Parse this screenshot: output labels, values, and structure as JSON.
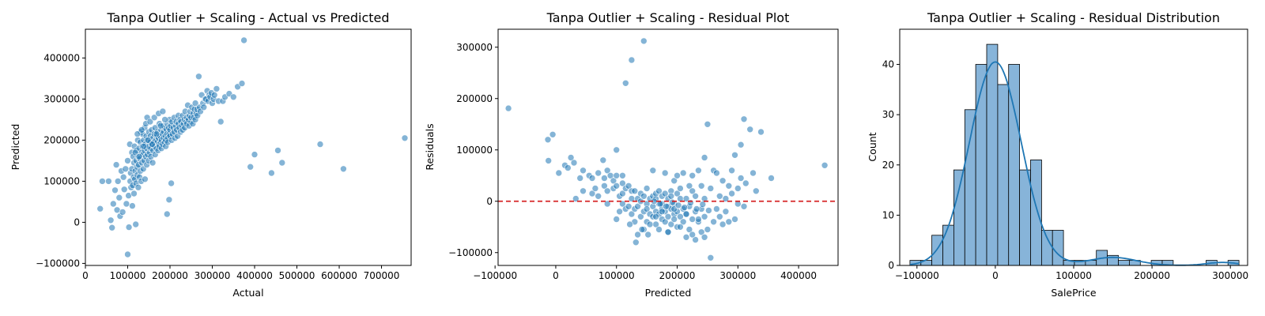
{
  "chart_data": [
    {
      "type": "scatter",
      "title": "Tanpa Outlier + Scaling - Actual vs Predicted",
      "xlabel": "Actual",
      "ylabel": "Predicted",
      "xlim": [
        0,
        770000
      ],
      "ylim": [
        -105000,
        470000
      ],
      "xticks": [
        0,
        100000,
        200000,
        300000,
        400000,
        500000,
        600000,
        700000
      ],
      "yticks": [
        -100000,
        0,
        100000,
        200000,
        300000,
        400000
      ],
      "color": "#1f77b4",
      "grid": false,
      "points_x": [
        35000,
        40000,
        55000,
        60000,
        63000,
        66000,
        70000,
        73000,
        75000,
        77000,
        80000,
        82000,
        85000,
        88000,
        90000,
        92000,
        95000,
        97000,
        100000,
        100000,
        102000,
        103000,
        105000,
        106000,
        107000,
        108000,
        110000,
        110000,
        111000,
        112000,
        113000,
        114000,
        115000,
        115000,
        116000,
        117000,
        118000,
        119000,
        120000,
        120000,
        121000,
        122000,
        123000,
        124000,
        125000,
        125000,
        126000,
        127000,
        128000,
        129000,
        130000,
        130000,
        131000,
        132000,
        133000,
        134000,
        135000,
        135000,
        136000,
        137000,
        138000,
        139000,
        140000,
        140000,
        141000,
        142000,
        143000,
        144000,
        145000,
        145000,
        146000,
        147000,
        148000,
        149000,
        150000,
        150000,
        152000,
        153000,
        154000,
        155000,
        155000,
        157000,
        158000,
        159000,
        160000,
        160000,
        162000,
        163000,
        164000,
        165000,
        165000,
        167000,
        168000,
        169000,
        170000,
        170000,
        172000,
        173000,
        174000,
        175000,
        175000,
        177000,
        178000,
        179000,
        180000,
        180000,
        182000,
        183000,
        184000,
        185000,
        185000,
        187000,
        188000,
        189000,
        190000,
        190000,
        192000,
        193000,
        194000,
        195000,
        195000,
        197000,
        198000,
        199000,
        200000,
        200000,
        202000,
        204000,
        205000,
        206000,
        208000,
        210000,
        210000,
        212000,
        214000,
        215000,
        216000,
        218000,
        220000,
        220000,
        222000,
        224000,
        225000,
        226000,
        228000,
        230000,
        230000,
        232000,
        234000,
        235000,
        236000,
        238000,
        240000,
        240000,
        242000,
        244000,
        245000,
        246000,
        248000,
        250000,
        250000,
        252000,
        254000,
        255000,
        256000,
        258000,
        260000,
        260000,
        262000,
        264000,
        265000,
        268000,
        270000,
        272000,
        275000,
        278000,
        280000,
        283000,
        285000,
        288000,
        290000,
        293000,
        295000,
        298000,
        300000,
        303000,
        305000,
        310000,
        315000,
        320000,
        325000,
        330000,
        340000,
        350000,
        360000,
        370000,
        375000,
        390000,
        400000,
        440000,
        455000,
        465000,
        555000,
        610000,
        755000,
        118000,
        123000,
        127000,
        133000,
        138000,
        143000,
        148000,
        153000,
        158000,
        163000,
        168000,
        173000,
        178000,
        183000,
        188000,
        193000,
        198000,
        203000,
        213000,
        223000,
        233000,
        243000,
        253000,
        107000,
        112000,
        117000
      ],
      "points_y": [
        33000,
        100000,
        100000,
        5000,
        -13000,
        45000,
        78000,
        140000,
        30000,
        100000,
        60000,
        15000,
        125000,
        25000,
        110000,
        80000,
        130000,
        45000,
        -78000,
        150000,
        65000,
        -12000,
        190000,
        100000,
        120000,
        85000,
        170000,
        130000,
        40000,
        90000,
        160000,
        110000,
        145000,
        70000,
        185000,
        105000,
        125000,
        -5000,
        150000,
        95000,
        175000,
        135000,
        115000,
        200000,
        160000,
        85000,
        140000,
        180000,
        110000,
        155000,
        195000,
        125000,
        220000,
        100000,
        170000,
        145000,
        185000,
        215000,
        165000,
        130000,
        200000,
        150000,
        175000,
        230000,
        105000,
        190000,
        160000,
        210000,
        180000,
        140000,
        255000,
        165000,
        200000,
        185000,
        220000,
        150000,
        170000,
        195000,
        210000,
        180000,
        160000,
        225000,
        190000,
        145000,
        205000,
        175000,
        195000,
        215000,
        185000,
        165000,
        230000,
        200000,
        180000,
        210000,
        195000,
        220000,
        175000,
        205000,
        190000,
        240000,
        185000,
        210000,
        195000,
        225000,
        200000,
        180000,
        215000,
        190000,
        235000,
        205000,
        220000,
        195000,
        230000,
        210000,
        200000,
        185000,
        225000,
        215000,
        240000,
        205000,
        195000,
        230000,
        215000,
        250000,
        210000,
        225000,
        235000,
        200000,
        245000,
        215000,
        230000,
        220000,
        255000,
        205000,
        235000,
        245000,
        225000,
        210000,
        260000,
        240000,
        230000,
        250000,
        220000,
        245000,
        235000,
        225000,
        260000,
        240000,
        250000,
        230000,
        270000,
        245000,
        255000,
        240000,
        285000,
        250000,
        235000,
        260000,
        270000,
        245000,
        255000,
        280000,
        240000,
        265000,
        255000,
        275000,
        250000,
        290000,
        265000,
        275000,
        260000,
        355000,
        280000,
        270000,
        310000,
        290000,
        280000,
        300000,
        300000,
        320000,
        295000,
        310000,
        305000,
        315000,
        290000,
        300000,
        310000,
        325000,
        295000,
        245000,
        295000,
        305000,
        313000,
        305000,
        330000,
        338000,
        443000,
        135000,
        165000,
        120000,
        175000,
        145000,
        190000,
        130000,
        205000,
        170000,
        215000,
        160000,
        225000,
        185000,
        240000,
        200000,
        245000,
        190000,
        255000,
        215000,
        265000,
        235000,
        270000,
        250000,
        20000,
        55000,
        95000
      ]
    },
    {
      "type": "scatter",
      "title": "Tanpa Outlier + Scaling - Residual Plot",
      "xlabel": "Predicted",
      "ylabel": "Residuals",
      "xlim": [
        -95000,
        465000
      ],
      "ylim": [
        -125000,
        335000
      ],
      "xticks": [
        -100000,
        0,
        100000,
        200000,
        300000,
        400000
      ],
      "yticks": [
        -100000,
        0,
        100000,
        200000,
        300000
      ],
      "reference_line": 0,
      "color": "#1f77b4",
      "grid": false,
      "points_x": [
        -78000,
        -13000,
        -12000,
        -5000,
        5000,
        15000,
        20000,
        25000,
        30000,
        33000,
        40000,
        45000,
        45000,
        55000,
        60000,
        60000,
        65000,
        70000,
        70000,
        78000,
        80000,
        80000,
        85000,
        85000,
        85000,
        90000,
        95000,
        95000,
        100000,
        100000,
        100000,
        100000,
        105000,
        105000,
        110000,
        110000,
        110000,
        110000,
        115000,
        115000,
        120000,
        120000,
        125000,
        125000,
        125000,
        130000,
        130000,
        130000,
        135000,
        135000,
        140000,
        140000,
        140000,
        145000,
        145000,
        145000,
        150000,
        150000,
        150000,
        150000,
        155000,
        155000,
        160000,
        160000,
        160000,
        160000,
        165000,
        165000,
        165000,
        165000,
        170000,
        170000,
        170000,
        170000,
        175000,
        175000,
        175000,
        175000,
        180000,
        180000,
        180000,
        180000,
        185000,
        185000,
        185000,
        185000,
        190000,
        190000,
        190000,
        190000,
        195000,
        195000,
        195000,
        195000,
        200000,
        200000,
        200000,
        200000,
        205000,
        205000,
        205000,
        210000,
        210000,
        210000,
        215000,
        215000,
        215000,
        220000,
        220000,
        220000,
        225000,
        225000,
        225000,
        230000,
        230000,
        230000,
        235000,
        235000,
        240000,
        240000,
        240000,
        245000,
        245000,
        245000,
        250000,
        250000,
        255000,
        255000,
        260000,
        260000,
        265000,
        265000,
        270000,
        270000,
        275000,
        275000,
        280000,
        280000,
        285000,
        285000,
        290000,
        290000,
        295000,
        295000,
        300000,
        300000,
        305000,
        305000,
        310000,
        310000,
        313000,
        320000,
        325000,
        330000,
        338000,
        355000,
        443000,
        115000,
        125000,
        135000,
        145000,
        155000,
        165000,
        175000,
        185000,
        195000,
        205000,
        215000,
        225000,
        235000,
        245000,
        122000,
        132000,
        142000,
        152000,
        162000,
        172000,
        182000,
        192000,
        202000,
        212000,
        222000,
        232000,
        242000,
        252000
      ],
      "points_y": [
        181000,
        120000,
        79000,
        130000,
        55000,
        70000,
        65000,
        85000,
        75000,
        5000,
        45000,
        20000,
        60000,
        50000,
        15000,
        45000,
        25000,
        10000,
        55000,
        80000,
        30000,
        45000,
        20000,
        60000,
        -5000,
        50000,
        25000,
        40000,
        30000,
        100000,
        -35000,
        50000,
        10000,
        -20000,
        35000,
        -5000,
        50000,
        15000,
        25000,
        -15000,
        -10000,
        30000,
        20000,
        -25000,
        5000,
        -15000,
        20000,
        -40000,
        5000,
        -10000,
        -30000,
        15000,
        0,
        -20000,
        -55000,
        10000,
        -5000,
        -15000,
        25000,
        -40000,
        -25000,
        5000,
        10000,
        -10000,
        -30000,
        60000,
        -20000,
        5000,
        -45000,
        15000,
        -5000,
        -25000,
        20000,
        -55000,
        -15000,
        10000,
        -35000,
        -5000,
        -20000,
        15000,
        -40000,
        55000,
        -10000,
        5000,
        -30000,
        -60000,
        20000,
        -15000,
        -45000,
        10000,
        -25000,
        40000,
        -5000,
        -35000,
        15000,
        -20000,
        50000,
        -50000,
        5000,
        -30000,
        25000,
        -15000,
        -40000,
        55000,
        -25000,
        5000,
        -70000,
        30000,
        -10000,
        -55000,
        20000,
        -35000,
        50000,
        -20000,
        -75000,
        10000,
        -40000,
        60000,
        -15000,
        30000,
        -60000,
        85000,
        -30000,
        5000,
        150000,
        -55000,
        -110000,
        25000,
        -40000,
        60000,
        -15000,
        55000,
        -30000,
        10000,
        -45000,
        40000,
        5000,
        -20000,
        30000,
        -40000,
        60000,
        15000,
        -35000,
        90000,
        25000,
        -5000,
        110000,
        45000,
        160000,
        -10000,
        35000,
        140000,
        55000,
        20000,
        135000,
        45000,
        70000,
        230000,
        275000,
        -65000,
        312000,
        -45000,
        -30000,
        -20000,
        -60000,
        -15000,
        -50000,
        -25000,
        -65000,
        -35000,
        -70000,
        -45000,
        -80000,
        -55000,
        -65000,
        0,
        -5000,
        -10000,
        -2000,
        -8000,
        -12000,
        -3000,
        -15000,
        -6000,
        -18000,
        -4000,
        -22000,
        -9000,
        -25000
      ]
    },
    {
      "type": "bar",
      "title": "Tanpa Outlier + Scaling - Residual Distribution",
      "xlabel": "SalePrice",
      "ylabel": "Count",
      "xlim": [
        -122000,
        322000
      ],
      "ylim": [
        0,
        47
      ],
      "xticks": [
        -100000,
        0,
        100000,
        200000,
        300000
      ],
      "yticks": [
        0,
        10,
        20,
        30,
        40
      ],
      "bin_width": 14000,
      "bin_start": -109000,
      "counts": [
        1,
        1,
        6,
        8,
        19,
        31,
        40,
        44,
        36,
        40,
        19,
        21,
        7,
        7,
        1,
        1,
        1,
        3,
        2,
        1,
        1,
        0,
        1,
        1,
        0,
        0,
        0,
        1,
        0,
        1
      ],
      "kde": true,
      "kde_mu": 0,
      "kde_sigma": 33000,
      "kde_peak": 40.5,
      "color": "#1f77b4",
      "bar_fill": "#87b4d9",
      "grid": false
    }
  ],
  "colors": {
    "point": "#1f77b4",
    "reference_line": "#d62728",
    "bar_fill": "#87b4d9",
    "kde": "#1f77b4"
  }
}
